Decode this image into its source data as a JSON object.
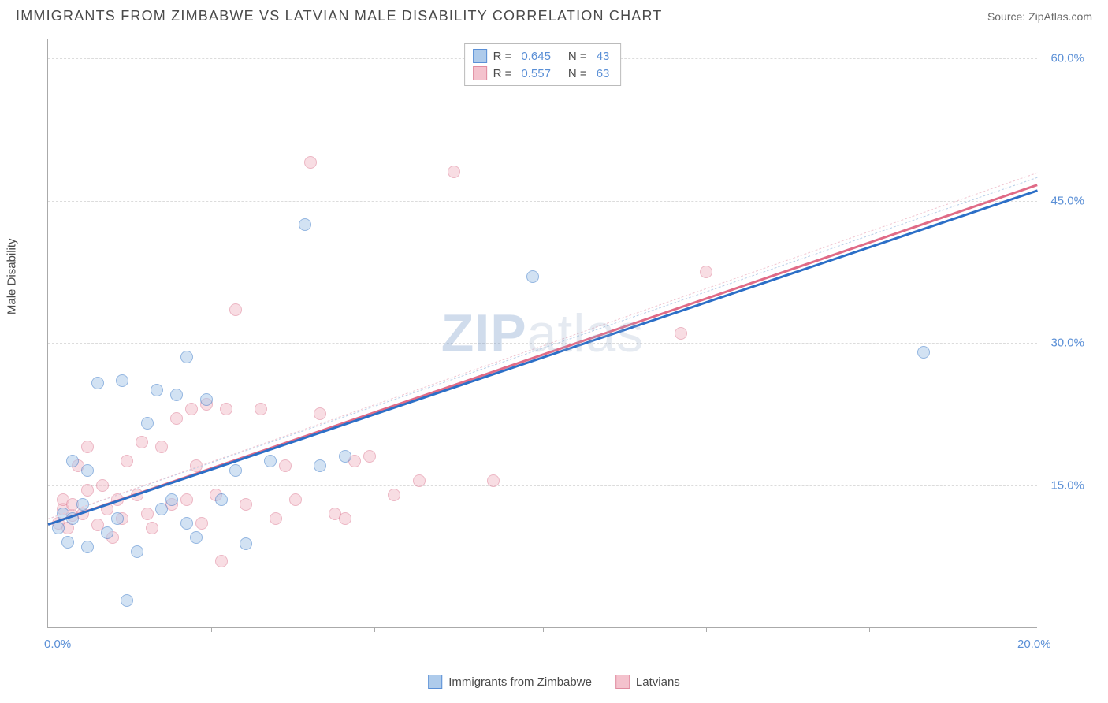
{
  "header": {
    "title": "IMMIGRANTS FROM ZIMBABWE VS LATVIAN MALE DISABILITY CORRELATION CHART",
    "source_prefix": "Source: ",
    "source_name": "ZipAtlas.com"
  },
  "chart": {
    "type": "scatter",
    "xlim": [
      0,
      20
    ],
    "ylim": [
      0,
      62
    ],
    "background_color": "#ffffff",
    "grid_color": "#dcdcdc",
    "axis_color": "#aaaaaa",
    "tick_label_color": "#5a8fd6",
    "y_axis_label": "Male Disability",
    "x_ticks_labels": [
      {
        "pos": 0.0,
        "label": "0.0%"
      },
      {
        "pos": 20.0,
        "label": "20.0%"
      }
    ],
    "x_tick_marks": [
      3.3,
      6.6,
      10.0,
      13.3,
      16.6
    ],
    "y_ticks": [
      {
        "pos": 15.0,
        "label": "15.0%"
      },
      {
        "pos": 30.0,
        "label": "30.0%"
      },
      {
        "pos": 45.0,
        "label": "45.0%"
      },
      {
        "pos": 60.0,
        "label": "60.0%"
      }
    ],
    "legend": {
      "series": [
        {
          "swatch_fill": "#aecbeb",
          "swatch_border": "#5a8fd6",
          "r": "0.645",
          "n": "43"
        },
        {
          "swatch_fill": "#f4c2cd",
          "swatch_border": "#e08ca0",
          "r": "0.557",
          "n": "63"
        }
      ],
      "r_label": "R =",
      "n_label": "N ="
    },
    "bottom_legend": [
      {
        "swatch_fill": "#aecbeb",
        "swatch_border": "#5a8fd6",
        "label": "Immigrants from Zimbabwe"
      },
      {
        "swatch_fill": "#f4c2cd",
        "swatch_border": "#e08ca0",
        "label": "Latvians"
      }
    ],
    "watermark": {
      "zip": "ZIP",
      "atlas": "atlas"
    },
    "series_a": {
      "color_fill": "#aecbeb",
      "color_border": "#3d7cc9",
      "trend_color": "#2c6fc7",
      "dash_color": "#b8cfe8",
      "trend": {
        "x1": 0.0,
        "y1": 11.0,
        "x2": 20.0,
        "y2": 46.2
      },
      "points": [
        [
          0.2,
          10.5
        ],
        [
          0.3,
          12.0
        ],
        [
          0.4,
          9.0
        ],
        [
          0.5,
          11.5
        ],
        [
          0.5,
          17.5
        ],
        [
          0.7,
          13.0
        ],
        [
          0.8,
          8.5
        ],
        [
          0.8,
          16.5
        ],
        [
          1.0,
          25.8
        ],
        [
          1.2,
          10.0
        ],
        [
          1.4,
          11.5
        ],
        [
          1.5,
          26.0
        ],
        [
          1.6,
          2.8
        ],
        [
          1.8,
          8.0
        ],
        [
          2.0,
          21.5
        ],
        [
          2.2,
          25.0
        ],
        [
          2.3,
          12.5
        ],
        [
          2.5,
          13.5
        ],
        [
          2.6,
          24.5
        ],
        [
          2.8,
          28.5
        ],
        [
          2.8,
          11.0
        ],
        [
          3.0,
          9.5
        ],
        [
          3.2,
          24.0
        ],
        [
          3.5,
          13.5
        ],
        [
          3.8,
          16.5
        ],
        [
          4.0,
          8.8
        ],
        [
          4.5,
          17.5
        ],
        [
          5.2,
          42.5
        ],
        [
          5.5,
          17.0
        ],
        [
          6.0,
          18.0
        ],
        [
          9.8,
          37.0
        ],
        [
          17.7,
          29.0
        ]
      ]
    },
    "series_b": {
      "color_fill": "#f4c2cd",
      "color_border": "#dd7c94",
      "trend_color": "#e06b87",
      "dash_color": "#f0c5d0",
      "trend": {
        "x1": 0.0,
        "y1": 11.0,
        "x2": 20.0,
        "y2": 46.8
      },
      "points": [
        [
          0.2,
          11.0
        ],
        [
          0.3,
          12.5
        ],
        [
          0.3,
          13.5
        ],
        [
          0.4,
          10.5
        ],
        [
          0.5,
          11.8
        ],
        [
          0.5,
          13.0
        ],
        [
          0.6,
          17.0
        ],
        [
          0.7,
          12.0
        ],
        [
          0.8,
          14.5
        ],
        [
          0.8,
          19.0
        ],
        [
          1.0,
          10.8
        ],
        [
          1.1,
          15.0
        ],
        [
          1.2,
          12.5
        ],
        [
          1.3,
          9.5
        ],
        [
          1.4,
          13.5
        ],
        [
          1.5,
          11.5
        ],
        [
          1.6,
          17.5
        ],
        [
          1.8,
          14.0
        ],
        [
          1.9,
          19.5
        ],
        [
          2.0,
          12.0
        ],
        [
          2.1,
          10.5
        ],
        [
          2.3,
          19.0
        ],
        [
          2.5,
          13.0
        ],
        [
          2.6,
          22.0
        ],
        [
          2.8,
          13.5
        ],
        [
          2.9,
          23.0
        ],
        [
          3.0,
          17.0
        ],
        [
          3.1,
          11.0
        ],
        [
          3.2,
          23.5
        ],
        [
          3.4,
          14.0
        ],
        [
          3.5,
          7.0
        ],
        [
          3.6,
          23.0
        ],
        [
          3.8,
          33.5
        ],
        [
          4.0,
          13.0
        ],
        [
          4.3,
          23.0
        ],
        [
          4.6,
          11.5
        ],
        [
          4.8,
          17.0
        ],
        [
          5.0,
          13.5
        ],
        [
          5.3,
          49.0
        ],
        [
          5.5,
          22.5
        ],
        [
          5.8,
          12.0
        ],
        [
          6.0,
          11.5
        ],
        [
          6.2,
          17.5
        ],
        [
          6.5,
          18.0
        ],
        [
          7.0,
          14.0
        ],
        [
          7.5,
          15.5
        ],
        [
          8.2,
          48.0
        ],
        [
          9.0,
          15.5
        ],
        [
          12.8,
          31.0
        ],
        [
          13.3,
          37.5
        ]
      ]
    }
  }
}
